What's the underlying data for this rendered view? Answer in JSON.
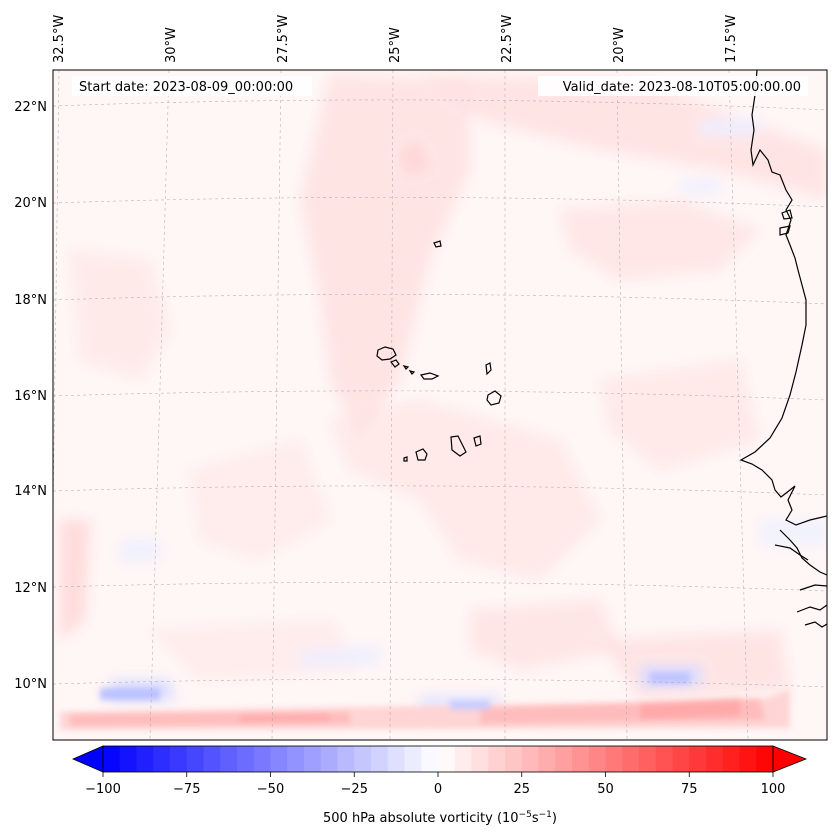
{
  "map": {
    "start_date_text": "Start date: 2023-08-09_00:00:00",
    "valid_date_text": "Valid_date: 2023-08-10T05:00:00.00",
    "lon_labels": [
      "32.5°W",
      "30°W",
      "27.5°W",
      "25°W",
      "22.5°W",
      "20°W",
      "17.5°W"
    ],
    "lat_labels": [
      "22°N",
      "20°N",
      "18°N",
      "16°N",
      "14°N",
      "12°N",
      "10°N"
    ],
    "gridlines": true,
    "coastline_color": "#000000",
    "field_background_color": "#fff6f6"
  },
  "colorbar": {
    "label": "500 hPa absolute vorticity (10",
    "label_exp1": "−5",
    "label_mid": "s",
    "label_exp2": "−1",
    "label_end": ")",
    "ticks": [
      "−100",
      "−75",
      "−50",
      "−25",
      "0",
      "25",
      "50",
      "75",
      "100"
    ],
    "range": [
      -100,
      100
    ],
    "levels": 40,
    "colormap": "bwr",
    "extend": "both",
    "color_min": "#0000ff",
    "color_mid": "#ffffff",
    "color_max": "#ff0000"
  }
}
